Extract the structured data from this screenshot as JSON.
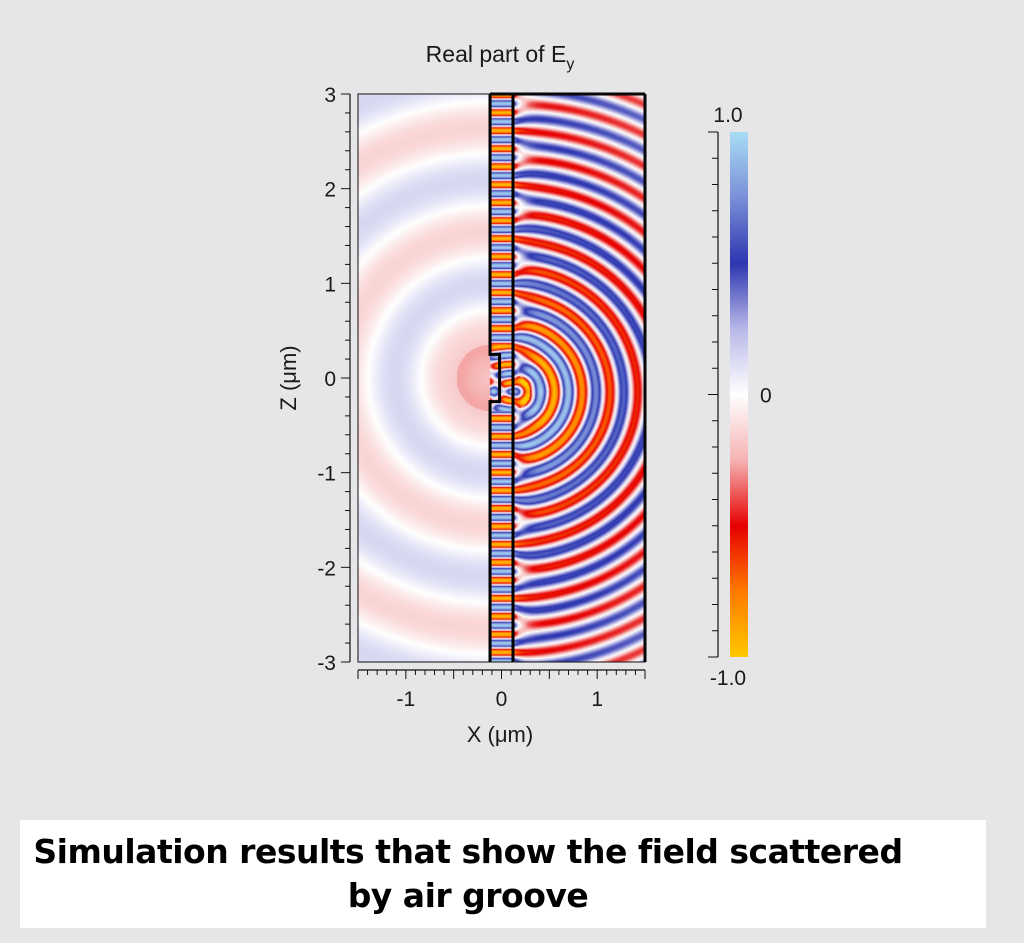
{
  "caption": "Simulation results that show the field scattered by air groove",
  "chart_data": {
    "type": "heatmap",
    "title": "Real part of E",
    "title_subscript": "y",
    "xlabel": "X (μm)",
    "ylabel": "Z (μm)",
    "xlim": [
      -1.5,
      1.5
    ],
    "ylim": [
      -3,
      3
    ],
    "xticks": [
      -1,
      0,
      1
    ],
    "xtick_labels": [
      "-1",
      "0",
      "1"
    ],
    "yticks": [
      -3,
      -2,
      -1,
      0,
      1,
      2,
      3
    ],
    "ytick_labels": [
      "-3",
      "-2",
      "-1",
      "0",
      "1",
      "2",
      "3"
    ],
    "colorbar": {
      "min": -1.0,
      "max": 1.0,
      "tick_labels": [
        {
          "value": 1.0,
          "label": "1.0"
        },
        {
          "value": 0,
          "label": "0"
        },
        {
          "value": -1.0,
          "label": "-1.0"
        }
      ],
      "colors": [
        "#ffc800",
        "#ff7a00",
        "#e60000",
        "#f5b3b3",
        "#ffffff",
        "#b8b8e8",
        "#2d36b0",
        "#7a8fd8",
        "#a8dcf5"
      ]
    },
    "structures": [
      {
        "name": "waveguide-left-edge-x",
        "value": -0.12
      },
      {
        "name": "waveguide-right-edge-x",
        "value": 0.12
      },
      {
        "name": "groove-depth-x",
        "value": -0.02
      },
      {
        "name": "groove-z-range",
        "value": [
          -0.25,
          0.25
        ]
      }
    ]
  }
}
